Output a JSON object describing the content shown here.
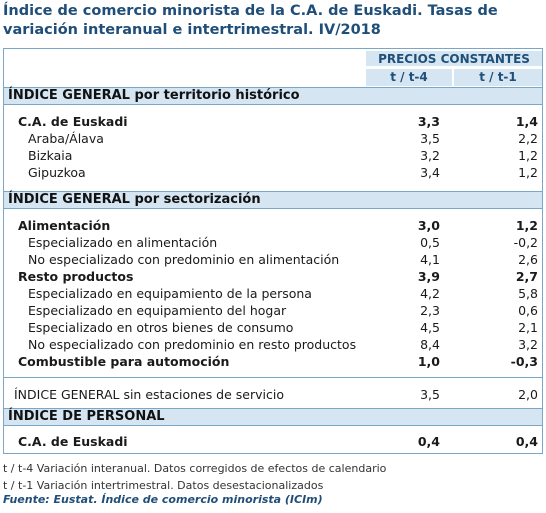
{
  "title": "Índice de comercio minorista de la C.A. de Euskadi. Tasas de variación interanual e intertrimestral. IV/2018",
  "header": {
    "group": "PRECIOS CONSTANTES",
    "col1": "t / t-4",
    "col2": "t / t-1"
  },
  "section1": {
    "title": "ÍNDICE GENERAL por territorio histórico",
    "rows": [
      {
        "label": "C.A. de Euskadi",
        "v1": "3,3",
        "v2": "1,4"
      },
      {
        "label": "Araba/Álava",
        "v1": "3,5",
        "v2": "2,2"
      },
      {
        "label": "Bizkaia",
        "v1": "3,2",
        "v2": "1,2"
      },
      {
        "label": "Gipuzkoa",
        "v1": "3,4",
        "v2": "1,2"
      }
    ]
  },
  "section2": {
    "title": "ÍNDICE GENERAL por sectorización",
    "rows": [
      {
        "label": "Alimentación",
        "v1": "3,0",
        "v2": "1,2"
      },
      {
        "label": "Especializado en alimentación",
        "v1": "0,5",
        "v2": "-0,2"
      },
      {
        "label": "No especializado con predominio en alimentación",
        "v1": "4,1",
        "v2": "2,6"
      },
      {
        "label": "Resto productos",
        "v1": "3,9",
        "v2": "2,7"
      },
      {
        "label": "Especializado en equipamiento de la persona",
        "v1": "4,2",
        "v2": "5,8"
      },
      {
        "label": "Especializado en equipamiento del hogar",
        "v1": "2,3",
        "v2": "0,6"
      },
      {
        "label": "Especializado en otros bienes de consumo",
        "v1": "4,5",
        "v2": "2,1"
      },
      {
        "label": "No especializado con predominio en resto productos",
        "v1": "8,4",
        "v2": "3,2"
      },
      {
        "label": "Combustible para automoción",
        "v1": "1,0",
        "v2": "-0,3"
      }
    ]
  },
  "sin_estaciones": {
    "label": "ÍNDICE GENERAL sin estaciones de servicio",
    "v1": "3,5",
    "v2": "2,0"
  },
  "section3": {
    "title": "ÍNDICE DE PERSONAL",
    "rows": [
      {
        "label": "C.A. de Euskadi",
        "v1": "0,4",
        "v2": "0,4"
      }
    ]
  },
  "notes": [
    "t / t-4 Variación interanual. Datos corregidos de efectos de calendario",
    "t / t-1 Variación intertrimestral. Datos desestacionalizados"
  ],
  "source": "Fuente: Eustat. Índice de comercio minorista (ICIm)"
}
